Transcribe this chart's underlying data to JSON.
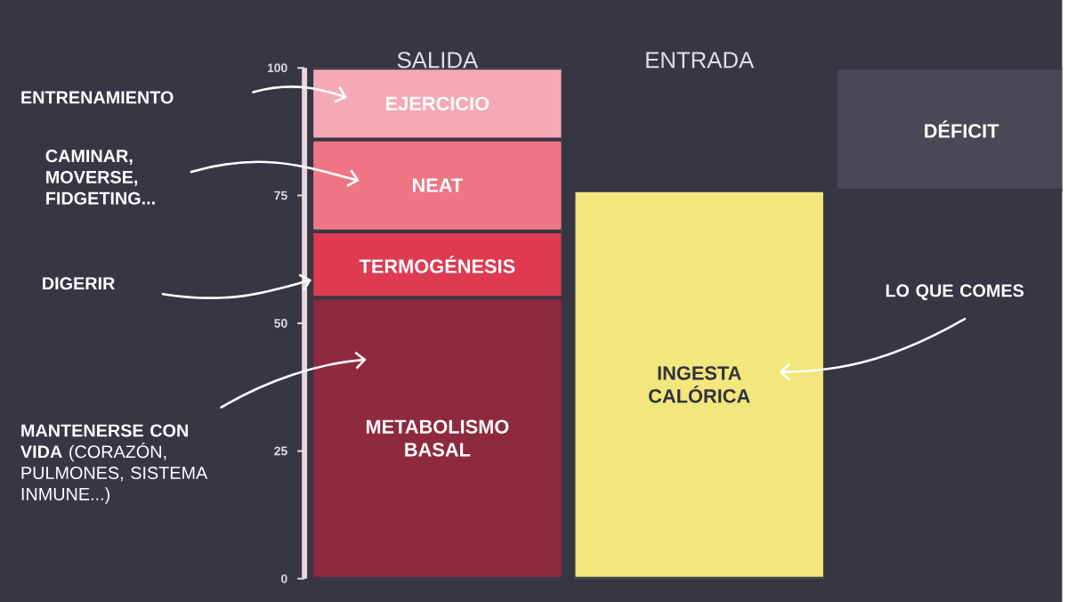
{
  "chart_data": {
    "type": "bar",
    "stacked": true,
    "categories": [
      "SALIDA",
      "ENTRADA",
      null
    ],
    "series": [
      {
        "name": "METABOLISMO BASAL",
        "color": "#8e2a3d",
        "values": [
          55,
          null,
          null
        ]
      },
      {
        "name": "TERMOGÉNESIS",
        "color": "#de3a50",
        "values": [
          13,
          null,
          null
        ]
      },
      {
        "name": "NEAT",
        "color": "#ef7585",
        "values": [
          18,
          null,
          null
        ]
      },
      {
        "name": "EJERCICIO",
        "color": "#f4a9b4",
        "values": [
          14,
          null,
          null
        ]
      },
      {
        "name": "INGESTA CALÓRICA",
        "color": "#f2e67c",
        "values": [
          null,
          76,
          null
        ]
      },
      {
        "name": "DÉFICIT",
        "color": "#4b4757",
        "values": [
          null,
          null,
          24
        ],
        "base": [
          null,
          null,
          76
        ]
      }
    ],
    "ylim": [
      0,
      100
    ],
    "yticks": [
      0,
      25,
      50,
      75,
      100
    ],
    "annotations": [
      "ENTRENAMIENTO",
      "CAMINAR, MOVERSE, FIDGETING...",
      "DIGERIR",
      "**MANTENERSE CON VIDA** (CORAZÓN, PULMONES, SISTEMA INMUNE...)",
      "LO QUE COMES"
    ]
  }
}
